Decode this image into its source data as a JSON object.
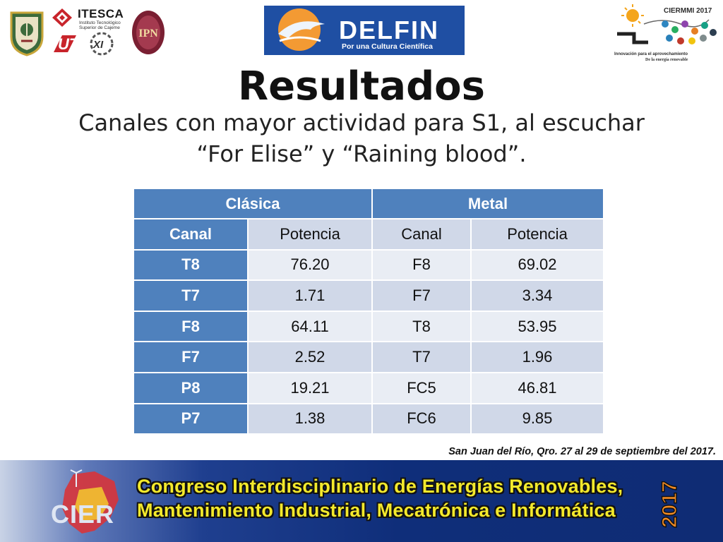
{
  "logos": {
    "itesca": {
      "name": "ITESCA",
      "sub_lines": [
        "Instituto Tecnológico",
        "Superior de Cajeme"
      ]
    },
    "ut": {
      "text": "UT",
      "accent": "XI"
    },
    "ipn": {
      "text": "IPN"
    },
    "delfin": {
      "word": "DELFIN",
      "tagline": "Por una Cultura Científica",
      "bg_color": "#1f4fa3"
    },
    "ciermmi": {
      "title": "CIERMMI 2017",
      "sub_line1": "Innovación para el aprovechamiento",
      "sub_line2": "De la energía renovable"
    }
  },
  "slide": {
    "title": "Resultados",
    "subtitle": "Canales con mayor actividad para S1, al escuchar “For Elise” y “Raining blood”."
  },
  "table": {
    "groups": [
      "Clásica",
      "Metal"
    ],
    "columns": [
      "Canal",
      "Potencia",
      "Canal",
      "Potencia"
    ],
    "rows": [
      [
        "T8",
        "76.20",
        "F8",
        "69.02"
      ],
      [
        "T7",
        "1.71",
        "F7",
        "3.34"
      ],
      [
        "F8",
        "64.11",
        "T8",
        "53.95"
      ],
      [
        "F7",
        "2.52",
        "T7",
        "1.96"
      ],
      [
        "P8",
        "19.21",
        "FC5",
        "46.81"
      ],
      [
        "P7",
        "1.38",
        "FC6",
        "9.85"
      ]
    ],
    "colors": {
      "header": "#4f81bd",
      "band_dark": "#d0d8e8",
      "band_light": "#e9edf4"
    }
  },
  "footer": {
    "event_note": "San Juan del Río, Qro. 27 al 29 de septiembre del 2017.",
    "banner_line1": "Congreso Interdisciplinario de Energías Renovables,",
    "banner_line2": "Mantenimiento Industrial, Mecatrónica e Informática",
    "banner_year": "2017",
    "banner_logo_text": "CIER",
    "banner_text_color": "#f3e92c"
  }
}
